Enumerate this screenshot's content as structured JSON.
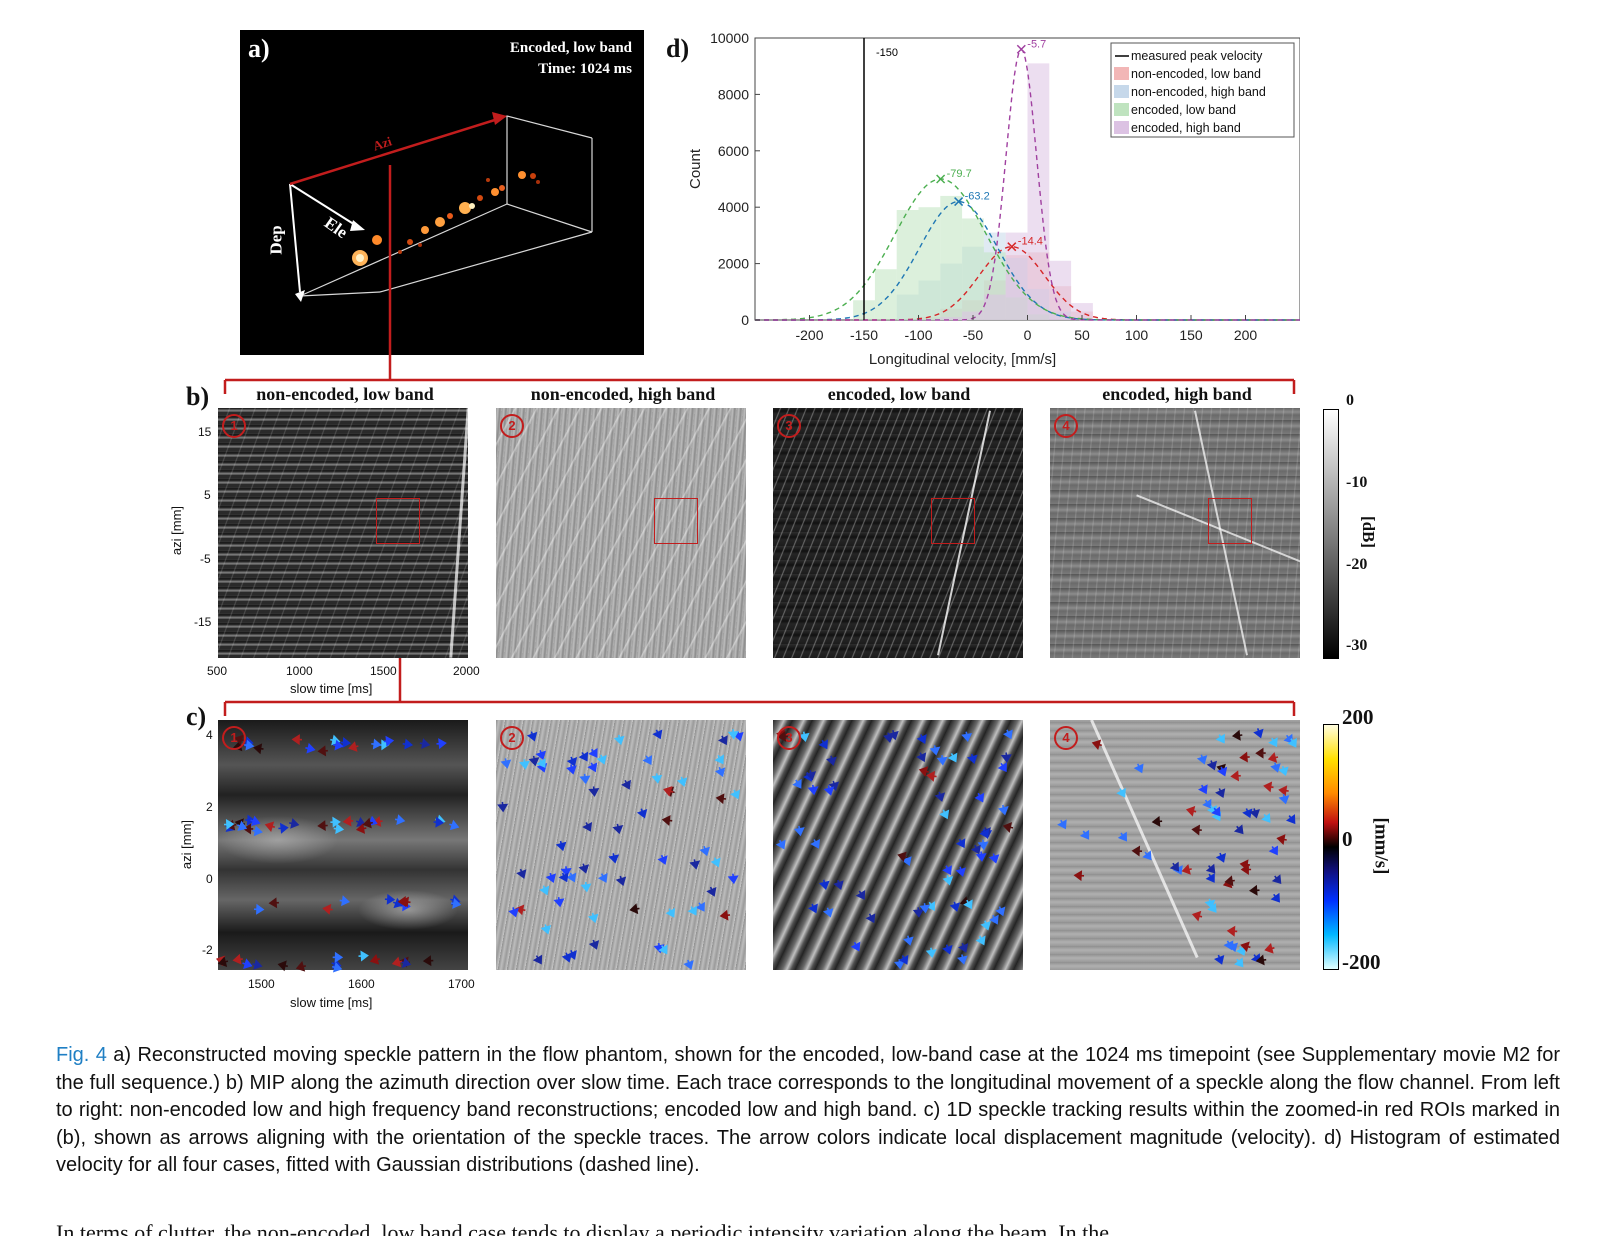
{
  "panel_a": {
    "letter": "a)",
    "title_line1": "Encoded, low band",
    "title_line2": "Time: 1024 ms",
    "axis_dep": "Dep",
    "axis_ele": "Ele",
    "axis_azi": "Azi"
  },
  "panel_b": {
    "letter": "b)",
    "subplot_titles": [
      "non-encoded, low band",
      "non-encoded, high band",
      "encoded, low band",
      "encoded, high band"
    ],
    "badges": [
      "1",
      "2",
      "3",
      "4"
    ],
    "ylabel": "azi [mm]",
    "yticks": [
      "15",
      "5",
      "-5",
      "-15"
    ],
    "xlabel": "slow time [ms]",
    "xticks": [
      "500",
      "1000",
      "1500",
      "2000"
    ],
    "colorbar_ticks": [
      "0",
      "-10",
      "-20",
      "-30"
    ],
    "colorbar_label": "[dB]"
  },
  "panel_c": {
    "letter": "c)",
    "badges": [
      "1",
      "2",
      "3",
      "4"
    ],
    "ylabel": "azi [mm]",
    "yticks": [
      "4",
      "2",
      "0",
      "-2"
    ],
    "xlabel": "slow time [ms]",
    "xticks": [
      "1500",
      "1600",
      "1700"
    ],
    "colorbar_ticks": [
      "200",
      "0",
      "-200"
    ],
    "colorbar_label": "[mm/s]"
  },
  "panel_d": {
    "letter": "d)"
  },
  "chart_data": {
    "type": "bar",
    "xlabel": "Longitudinal velocity, [mm/s]",
    "ylabel": "Count",
    "xlim": [
      -250,
      250
    ],
    "ylim": [
      0,
      10000
    ],
    "xticks": [
      -200,
      -150,
      -100,
      -50,
      0,
      50,
      100,
      150,
      200
    ],
    "yticks": [
      0,
      2000,
      4000,
      6000,
      8000,
      10000
    ],
    "legend_position": "top-right",
    "bin_edges": [
      -160,
      -140,
      -120,
      -100,
      -80,
      -60,
      -40,
      -20,
      0,
      20,
      40,
      60
    ],
    "series": [
      {
        "name": "non-encoded, low band",
        "color": "#f2b6b6",
        "values": [
          0,
          0,
          0,
          100,
          400,
          700,
          1400,
          2300,
          2400,
          1200,
          300
        ]
      },
      {
        "name": "non-encoded, high band",
        "color": "#c6d8ea",
        "values": [
          0,
          0,
          900,
          1400,
          2000,
          2600,
          3100,
          2200,
          1100,
          300,
          0
        ]
      },
      {
        "name": "encoded, low band",
        "color": "#bfe3bf",
        "values": [
          700,
          1800,
          3900,
          4000,
          4400,
          3600,
          2400,
          800,
          200,
          0,
          0
        ]
      },
      {
        "name": "encoded, high band",
        "color": "#dcc2e3",
        "values": [
          0,
          0,
          0,
          0,
          100,
          300,
          900,
          3100,
          9100,
          2100,
          600
        ]
      }
    ],
    "reference_line": {
      "name": "measured peak velocity",
      "x": -150,
      "label": "-150",
      "color": "#000000"
    },
    "gaussian_peaks": [
      {
        "series": "non-encoded, low band",
        "x": -14.4,
        "label": "-14.4",
        "peak": 2600,
        "sigma": 30,
        "color": "#d62728"
      },
      {
        "series": "non-encoded, high band",
        "x": -63.2,
        "label": "-63.2",
        "peak": 4200,
        "sigma": 36,
        "color": "#1f77b4"
      },
      {
        "series": "encoded, low band",
        "x": -79.7,
        "label": "-79.7",
        "peak": 5000,
        "sigma": 42,
        "color": "#4caf50"
      },
      {
        "series": "encoded, high band",
        "x": -5.7,
        "label": "-5.7",
        "peak": 9600,
        "sigma": 14,
        "color": "#a040a0"
      }
    ]
  },
  "caption": {
    "figref": "Fig. 4",
    "text": " a) Reconstructed moving speckle pattern in the flow phantom, shown for the encoded, low-band case at the 1024 ms timepoint (see Supplementary movie M2 for the full sequence.) b) MIP along the azimuth direction over slow time. Each trace corresponds to the longitudinal movement of a speckle along the flow channel. From left to right: non-encoded low and high frequency band reconstructions; encoded low and high band. c) 1D speckle tracking results within the zoomed-in red ROIs marked in (b), shown as arrows aligning with the orientation of the speckle traces. The arrow colors indicate local displacement magnitude (velocity). d) Histogram of estimated velocity for all four cases, fitted with Gaussian distributions (dashed line)."
  },
  "next_text": "In terms of clutter, the non-encoded, low band case tends to display a periodic intensity variation along the beam. In the"
}
